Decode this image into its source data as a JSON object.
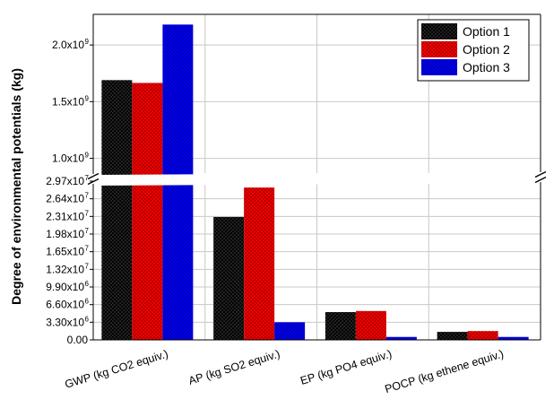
{
  "chart_data": {
    "type": "bar",
    "ylabel": "Degree of environmental potentials (kg)",
    "categories": [
      "GWP (kg CO2 equiv.)",
      "AP (kg SO2 equiv.)",
      "EP (kg PO4 equiv.)",
      "POCP  (kg ethene equiv.)"
    ],
    "series": [
      {
        "name": "Option 1",
        "color": "#000000",
        "values": [
          1690000000,
          23000000,
          5200000,
          1500000
        ]
      },
      {
        "name": "Option 2",
        "color": "#ff0000",
        "values": [
          1665000000,
          28500000,
          5400000,
          1650000
        ]
      },
      {
        "name": "Option 3",
        "color": "#0000ff",
        "values": [
          2180000000,
          3300000,
          550000,
          550000
        ]
      }
    ],
    "y_axis_break": {
      "lower_range": [
        0,
        29700000
      ],
      "upper_range": [
        870000000,
        2270000000
      ]
    },
    "lower_ticks": [
      {
        "value": 0,
        "label": "0.00"
      },
      {
        "value": 3300000,
        "label": "3.30x10",
        "exp": "6"
      },
      {
        "value": 6600000,
        "label": "6.60x10",
        "exp": "6"
      },
      {
        "value": 9900000,
        "label": "9.90x10",
        "exp": "6"
      },
      {
        "value": 13200000,
        "label": "1.32x10",
        "exp": "7"
      },
      {
        "value": 16500000,
        "label": "1.65x10",
        "exp": "7"
      },
      {
        "value": 19800000,
        "label": "1.98x10",
        "exp": "7"
      },
      {
        "value": 23100000,
        "label": "2.31x10",
        "exp": "7"
      },
      {
        "value": 26400000,
        "label": "2.64x10",
        "exp": "7"
      },
      {
        "value": 29700000,
        "label": "2.97x10",
        "exp": "7"
      }
    ],
    "upper_ticks": [
      {
        "value": 1000000000,
        "label": "1.0x10",
        "exp": "9"
      },
      {
        "value": 1500000000,
        "label": "1.5x10",
        "exp": "9"
      },
      {
        "value": 2000000000,
        "label": "2.0x10",
        "exp": "9"
      }
    ],
    "legend_position": "top-right",
    "grid": true,
    "bar_pattern": "crosshatch"
  }
}
